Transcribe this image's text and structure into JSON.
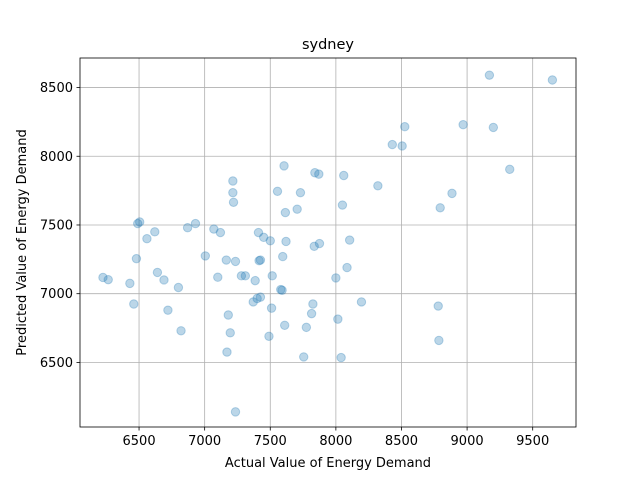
{
  "chart_data": {
    "type": "scatter",
    "title": "sydney",
    "xlabel": "Actual Value of Energy Demand",
    "ylabel": "Predicted Value of Energy Demand",
    "xlim": [
      6050,
      9830
    ],
    "ylim": [
      6030,
      8715
    ],
    "xticks": [
      6500,
      7000,
      7500,
      8000,
      8500,
      9000,
      9500
    ],
    "yticks": [
      6500,
      7000,
      7500,
      8000,
      8500
    ],
    "grid": true,
    "marker_color": "#1f77b4",
    "marker_alpha": 0.3,
    "points": [
      [
        6225,
        7118
      ],
      [
        6265,
        7102
      ],
      [
        6430,
        7075
      ],
      [
        6460,
        6925
      ],
      [
        6480,
        7255
      ],
      [
        6490,
        7510
      ],
      [
        6505,
        7522
      ],
      [
        6560,
        7400
      ],
      [
        6620,
        7450
      ],
      [
        6640,
        7155
      ],
      [
        6690,
        7100
      ],
      [
        6720,
        6880
      ],
      [
        6800,
        7045
      ],
      [
        6820,
        6730
      ],
      [
        6870,
        7480
      ],
      [
        6930,
        7510
      ],
      [
        7005,
        7275
      ],
      [
        7070,
        7470
      ],
      [
        7100,
        7120
      ],
      [
        7120,
        7445
      ],
      [
        7165,
        7245
      ],
      [
        7170,
        6575
      ],
      [
        7180,
        6845
      ],
      [
        7195,
        6715
      ],
      [
        7215,
        7820
      ],
      [
        7215,
        7735
      ],
      [
        7220,
        7665
      ],
      [
        7235,
        6140
      ],
      [
        7235,
        7235
      ],
      [
        7280,
        7130
      ],
      [
        7310,
        7130
      ],
      [
        7370,
        6940
      ],
      [
        7385,
        7095
      ],
      [
        7400,
        6965
      ],
      [
        7410,
        7445
      ],
      [
        7415,
        7240
      ],
      [
        7425,
        7245
      ],
      [
        7425,
        6975
      ],
      [
        7450,
        7410
      ],
      [
        7490,
        6690
      ],
      [
        7500,
        7385
      ],
      [
        7510,
        6895
      ],
      [
        7515,
        7130
      ],
      [
        7555,
        7745
      ],
      [
        7580,
        7030
      ],
      [
        7590,
        7025
      ],
      [
        7595,
        7270
      ],
      [
        7605,
        7930
      ],
      [
        7610,
        6770
      ],
      [
        7615,
        7590
      ],
      [
        7620,
        7380
      ],
      [
        7705,
        7615
      ],
      [
        7730,
        7735
      ],
      [
        7755,
        6540
      ],
      [
        7775,
        6755
      ],
      [
        7815,
        6855
      ],
      [
        7825,
        6925
      ],
      [
        7835,
        7345
      ],
      [
        7840,
        7880
      ],
      [
        7870,
        7870
      ],
      [
        7875,
        7365
      ],
      [
        8000,
        7115
      ],
      [
        8015,
        6815
      ],
      [
        8040,
        6535
      ],
      [
        8050,
        7645
      ],
      [
        8060,
        7860
      ],
      [
        8085,
        7190
      ],
      [
        8105,
        7390
      ],
      [
        8195,
        6940
      ],
      [
        8320,
        7785
      ],
      [
        8430,
        8085
      ],
      [
        8505,
        8075
      ],
      [
        8525,
        8215
      ],
      [
        8780,
        6910
      ],
      [
        8785,
        6660
      ],
      [
        8795,
        7625
      ],
      [
        8885,
        7730
      ],
      [
        8970,
        8230
      ],
      [
        9170,
        8590
      ],
      [
        9200,
        8210
      ],
      [
        9325,
        7905
      ],
      [
        9650,
        8555
      ]
    ]
  }
}
